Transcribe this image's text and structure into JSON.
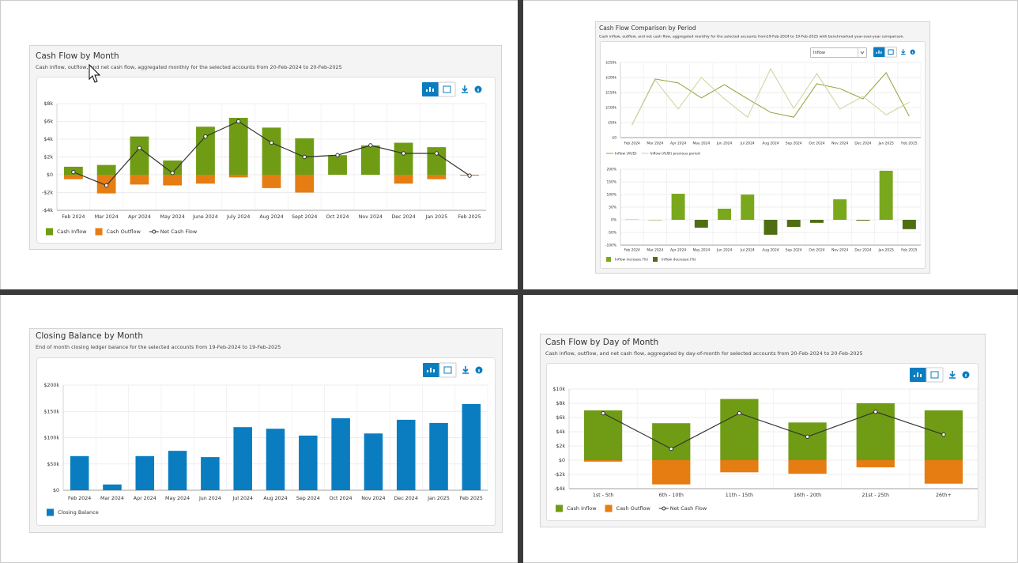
{
  "chart_data": [
    {
      "type": "combo",
      "title": "Cash Flow by Month",
      "subtitle": "Cash inflow, outflow, and net cash flow, aggregated monthly for the selected accounts from 20-Feb-2024 to 20-Feb-2025",
      "categories": [
        "Feb 2024",
        "Mar 2024",
        "Apr 2024",
        "May 2024",
        "June 2024",
        "July 2024",
        "Aug 2024",
        "Sept 2024",
        "Oct 2024",
        "Nov 2024",
        "Dec 2024",
        "Jan 2025",
        "Feb 2025"
      ],
      "series": [
        {
          "name": "Cash Inflow",
          "kind": "bar",
          "color": "#6f9c14",
          "values": [
            900,
            1100,
            4300,
            1600,
            5400,
            6400,
            5300,
            4100,
            2200,
            3300,
            3600,
            3100,
            0
          ]
        },
        {
          "name": "Cash Outflow",
          "kind": "bar",
          "color": "#e57d12",
          "values": [
            -500,
            -2100,
            -1100,
            -1200,
            -1000,
            -300,
            -1500,
            -2000,
            0,
            0,
            -1000,
            -500,
            -100
          ]
        },
        {
          "name": "Net Cash Flow",
          "kind": "line",
          "color": "#333333",
          "values": [
            300,
            -1200,
            3000,
            200,
            4300,
            6000,
            3600,
            2000,
            2200,
            3300,
            2400,
            2400,
            -100
          ]
        }
      ],
      "markers": true,
      "ylim": [
        -4000,
        8000
      ],
      "yticks": [
        {
          "value": 8000,
          "label": "$8k"
        },
        {
          "value": 6000,
          "label": "$6k"
        },
        {
          "value": 4000,
          "label": "$4k"
        },
        {
          "value": 2000,
          "label": "$2k"
        },
        {
          "value": 0,
          "label": "$0"
        },
        {
          "value": -2000,
          "label": "-$2k"
        },
        {
          "value": -4000,
          "label": "-$4k"
        }
      ],
      "grid": true
    },
    {
      "type": "line",
      "title": "Cash Flow Comparison by Period",
      "subtitle": "Cash inflow, outflow, and net cash flow, aggregated monthly for the selected accounts from19-Feb-2024 to 19-Feb-2025 with benchmarked year-over-year comparison.",
      "selector": "Inflow",
      "categories": [
        "Feb 2024",
        "Mar 2024",
        "Apr 2024",
        "May 2024",
        "Jun 2024",
        "Jul 2024",
        "Aug 2024",
        "Sep 2024",
        "Oct 2024",
        "Nov 2024",
        "Dec 2024",
        "Jan 2025",
        "Feb 2025"
      ],
      "series": [
        {
          "name": "Inflow (AUD)",
          "color": "#8ea339",
          "values": [
            42000,
            195000,
            182000,
            132000,
            176000,
            129000,
            84000,
            68000,
            179000,
            163000,
            129000,
            216000,
            71000
          ]
        },
        {
          "name": "Inflow (AUD) previous period",
          "color": "#c8d59b",
          "values": [
            42000,
            192000,
            95000,
            200000,
            129000,
            68000,
            229000,
            97000,
            213000,
            95000,
            137000,
            76000,
            118000
          ]
        }
      ],
      "ylim": [
        0,
        250000
      ],
      "yticks": [
        {
          "value": 250000,
          "label": "$250k"
        },
        {
          "value": 200000,
          "label": "$200k"
        },
        {
          "value": 150000,
          "label": "$150k"
        },
        {
          "value": 100000,
          "label": "$100k"
        },
        {
          "value": 50000,
          "label": "$50k"
        },
        {
          "value": 0,
          "label": "$0"
        }
      ],
      "grid": true
    },
    {
      "type": "bar",
      "categories": [
        "Feb 2024",
        "Mar 2024",
        "Apr 2024",
        "May 2024",
        "Jun 2024",
        "Jul 2024",
        "Aug 2024",
        "Sep 2024",
        "Oct 2024",
        "Nov 2024",
        "Dec 2024",
        "Jan 2025",
        "Feb 2025"
      ],
      "series": [
        {
          "name": "Inflow increase (%)",
          "color": "#7aa81c",
          "values": [
            1,
            null,
            103,
            null,
            44,
            100,
            null,
            null,
            null,
            81,
            null,
            194,
            null
          ]
        },
        {
          "name": "Inflow decrease (%)",
          "color": "#4f6e14",
          "values": [
            null,
            -1,
            null,
            -31,
            null,
            null,
            -59,
            -28,
            -12,
            null,
            -3,
            null,
            -37
          ]
        }
      ],
      "ylim": [
        -100,
        200
      ],
      "yticks": [
        {
          "value": 200,
          "label": "200%"
        },
        {
          "value": 150,
          "label": "150%"
        },
        {
          "value": 100,
          "label": "100%"
        },
        {
          "value": 50,
          "label": "50%"
        },
        {
          "value": 0,
          "label": "0%"
        },
        {
          "value": -50,
          "label": "-50%"
        },
        {
          "value": -100,
          "label": "-100%"
        }
      ],
      "grid": true
    },
    {
      "type": "bar",
      "title": "Closing Balance by Month",
      "subtitle": "End of month closing ledger balance for the selected accounts from 19-Feb-2024 to 19-Feb-2025",
      "categories": [
        "Feb 2024",
        "Mar 2024",
        "Apr 2024",
        "May 2024",
        "Jun 2024",
        "Jul 2024",
        "Aug 2024",
        "Sep 2024",
        "Oct 2024",
        "Nov 2024",
        "Dec 2024",
        "Jan 2025",
        "Feb 2025"
      ],
      "series": [
        {
          "name": "Closing Balance",
          "color": "#0a7dc0",
          "values": [
            65000,
            11000,
            65000,
            75000,
            63000,
            120000,
            117000,
            104000,
            137000,
            108000,
            134000,
            128000,
            164000
          ]
        }
      ],
      "ylim": [
        0,
        200000
      ],
      "yticks": [
        {
          "value": 200000,
          "label": "$200k"
        },
        {
          "value": 150000,
          "label": "$150k"
        },
        {
          "value": 100000,
          "label": "$100k"
        },
        {
          "value": 50000,
          "label": "$50k"
        },
        {
          "value": 0,
          "label": "$0"
        }
      ],
      "grid": true
    },
    {
      "type": "combo",
      "title": "Cash Flow by Day of Month",
      "subtitle": "Cash inflow, outflow, and net cash flow, aggregated by day-of-month for selected accounts from 20-Feb-2024 to 20-Feb-2025",
      "categories": [
        "1st - 5th",
        "6th - 10th",
        "11th - 15th",
        "16th - 20th",
        "21st - 25th",
        "26th+"
      ],
      "series": [
        {
          "name": "Cash Inflow",
          "kind": "bar",
          "color": "#6f9c14",
          "values": [
            7000,
            5200,
            8600,
            5300,
            8000,
            7000
          ]
        },
        {
          "name": "Cash Outflow",
          "kind": "bar",
          "color": "#e57d12",
          "values": [
            -200,
            -3400,
            -1700,
            -1900,
            -1000,
            -3300
          ]
        },
        {
          "name": "Net Cash Flow",
          "kind": "line",
          "color": "#333333",
          "values": [
            6600,
            1600,
            6600,
            3300,
            6800,
            3600
          ]
        }
      ],
      "markers": true,
      "ylim": [
        -4000,
        10000
      ],
      "yticks": [
        {
          "value": 10000,
          "label": "$10k"
        },
        {
          "value": 8000,
          "label": "$8k"
        },
        {
          "value": 6000,
          "label": "$6k"
        },
        {
          "value": 4000,
          "label": "$4k"
        },
        {
          "value": 2000,
          "label": "$2k"
        },
        {
          "value": 0,
          "label": "$0"
        },
        {
          "value": -2000,
          "label": "-$2k"
        },
        {
          "value": -4000,
          "label": "-$4k"
        }
      ],
      "grid": true
    }
  ]
}
